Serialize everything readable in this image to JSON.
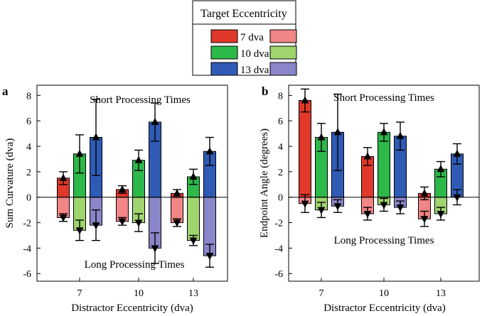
{
  "legend": {
    "title": "Target Eccentricity",
    "entries": [
      {
        "label": "7 dva",
        "short_color": "#e0382a",
        "long_color": "#f28585"
      },
      {
        "label": "10 dva",
        "short_color": "#2db84a",
        "long_color": "#9fd46e"
      },
      {
        "label": "13 dva",
        "short_color": "#2f5bb5",
        "long_color": "#8b85c9"
      }
    ]
  },
  "chart_data": [
    {
      "panel_label": "a",
      "type": "bar",
      "title_top": "Short Processing Times",
      "title_bottom": "Long Processing Times",
      "xlabel": "Distractor Eccentricity (dva)",
      "ylabel": "Sum Curvature (dva)",
      "ylim": [
        -6.6,
        8.8
      ],
      "yticks": [
        -6,
        -4,
        -2,
        0,
        2,
        4,
        6,
        8
      ],
      "categories": [
        "7",
        "10",
        "13"
      ],
      "series": [
        {
          "name": "7 dva short",
          "values": [
            1.5,
            0.6,
            0.3
          ],
          "error": [
            0.5,
            0.3,
            0.3
          ]
        },
        {
          "name": "10 dva short",
          "values": [
            3.4,
            2.9,
            1.6
          ],
          "error": [
            1.5,
            0.8,
            0.6
          ]
        },
        {
          "name": "13 dva short",
          "values": [
            4.7,
            5.9,
            3.6
          ],
          "error": [
            3.0,
            1.5,
            1.1
          ]
        },
        {
          "name": "7 dva long",
          "values": [
            -1.6,
            -1.9,
            -2.0
          ],
          "error": [
            0.3,
            0.3,
            0.3
          ]
        },
        {
          "name": "10 dva long",
          "values": [
            -2.6,
            -2.0,
            -3.4
          ],
          "error": [
            0.8,
            0.7,
            0.4
          ]
        },
        {
          "name": "13 dva long",
          "values": [
            -2.2,
            -4.0,
            -4.6
          ],
          "error": [
            1.2,
            1.2,
            0.9
          ]
        }
      ]
    },
    {
      "panel_label": "b",
      "type": "bar",
      "title_top": "Short Processing Times",
      "title_bottom": "Long Processing Times",
      "xlabel": "Distractor Eccentricity (dva)",
      "ylabel": "Endpoint Angle (degrees)",
      "ylim": [
        -6.6,
        8.8
      ],
      "yticks": [
        -6,
        -4,
        -2,
        0,
        2,
        4,
        6,
        8
      ],
      "categories": [
        "7",
        "10",
        "13"
      ],
      "series": [
        {
          "name": "7 dva short",
          "values": [
            7.6,
            3.2,
            0.3
          ],
          "error": [
            0.9,
            0.7,
            0.5
          ]
        },
        {
          "name": "10 dva short",
          "values": [
            4.7,
            5.1,
            2.2
          ],
          "error": [
            1.1,
            0.7,
            0.6
          ]
        },
        {
          "name": "13 dva short",
          "values": [
            5.1,
            4.8,
            3.4
          ],
          "error": [
            3.0,
            1.1,
            0.8
          ]
        },
        {
          "name": "7 dva long",
          "values": [
            -0.5,
            -1.3,
            -1.7
          ],
          "error": [
            0.7,
            0.5,
            0.6
          ]
        },
        {
          "name": "10 dva long",
          "values": [
            -1.0,
            -0.6,
            -1.3
          ],
          "error": [
            0.6,
            0.5,
            0.5
          ]
        },
        {
          "name": "13 dva long",
          "values": [
            -0.7,
            -0.8,
            0.0
          ],
          "error": [
            0.5,
            0.5,
            0.6
          ]
        }
      ]
    }
  ]
}
